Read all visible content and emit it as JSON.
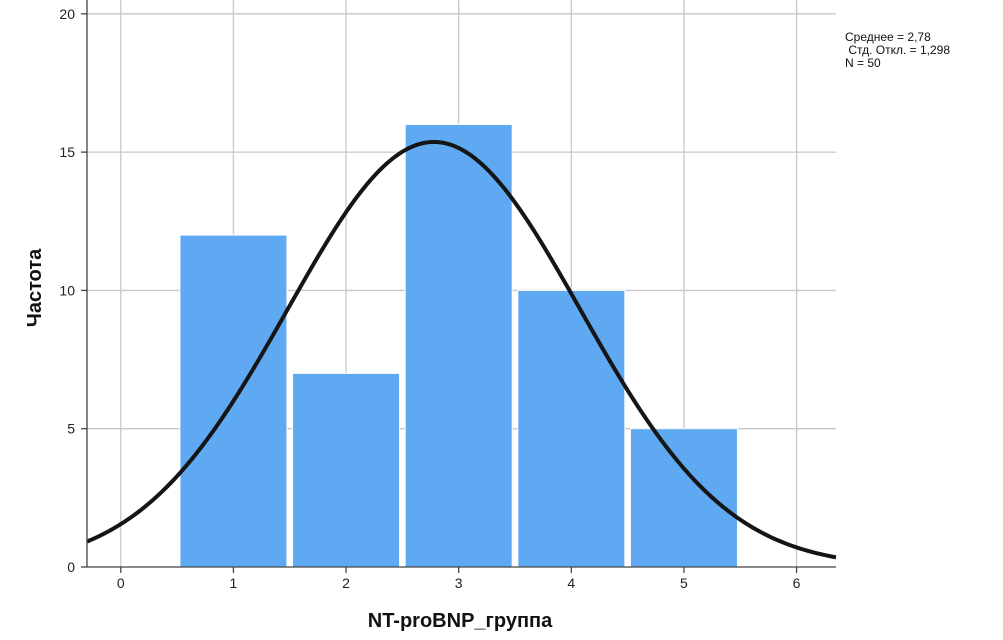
{
  "chart_data": {
    "type": "bar",
    "subtype": "histogram",
    "xlabel": "NT-proBNP_группа",
    "ylabel": "Частота",
    "xlim": [
      -0.3,
      6.35
    ],
    "ylim": [
      0,
      20.5
    ],
    "x_ticks": [
      0,
      1,
      2,
      3,
      4,
      5,
      6
    ],
    "y_ticks": [
      0,
      5,
      10,
      15,
      20
    ],
    "bar_width": 0.95,
    "bins": [
      {
        "x": 1,
        "count": 12
      },
      {
        "x": 2,
        "count": 7
      },
      {
        "x": 3,
        "count": 16
      },
      {
        "x": 4,
        "count": 10
      },
      {
        "x": 5,
        "count": 5
      }
    ],
    "normal_curve": {
      "mean": 2.78,
      "sd": 1.298,
      "n": 50,
      "bin_width": 1
    },
    "stats": [
      "Среднее = 2,78",
      " Стд. Откл. = 1,298",
      "N = 50"
    ],
    "grid": true,
    "legend_position": "top-right",
    "colors": {
      "bar_fill": "#5ea9f2",
      "bar_edge": "#ffffff",
      "curve": "#151515",
      "grid": "#c8c8c8",
      "axis": "#444444"
    }
  }
}
